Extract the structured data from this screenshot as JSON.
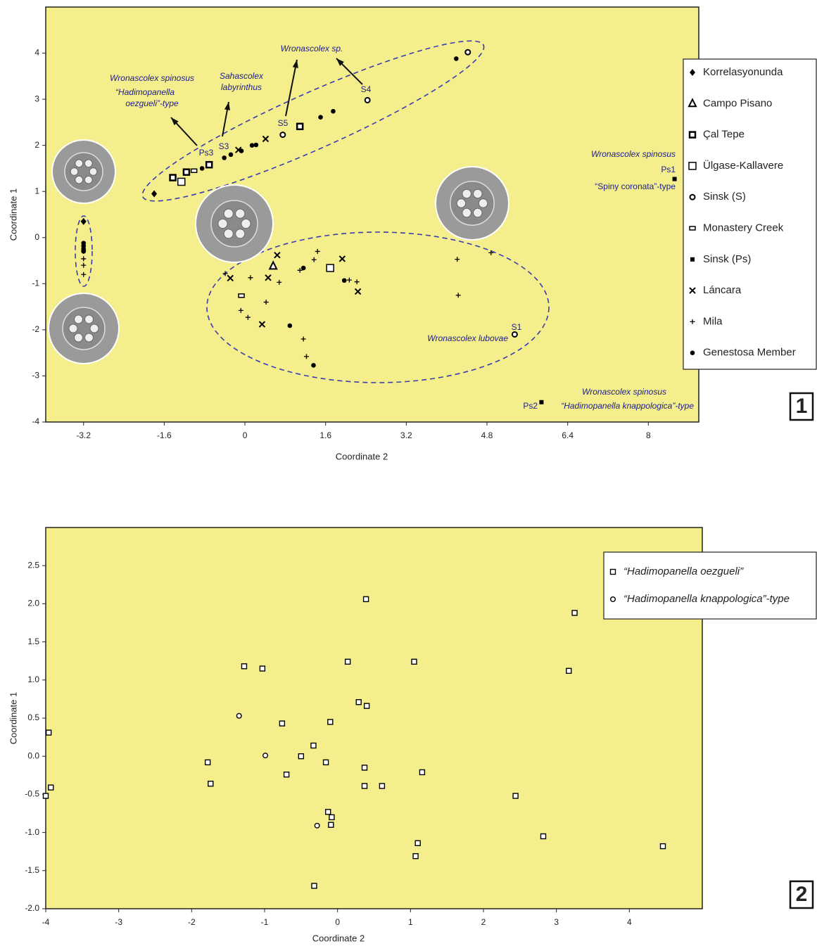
{
  "chart_data": [
    {
      "type": "scatter",
      "xlabel": "Coordinate 2",
      "ylabel": "Coordinate 1",
      "xlim": [
        -3.95,
        9.0
      ],
      "ylim": [
        -4,
        5
      ],
      "xticks": [
        -3.2,
        -1.6,
        0,
        1.6,
        3.2,
        4.8,
        6.4,
        8
      ],
      "yticks": [
        -4,
        -3,
        -2,
        -1,
        0,
        1,
        2,
        3,
        4
      ],
      "legend": "right",
      "panel_label": "1",
      "series": [
        {
          "name": "Korrelasyonunda",
          "marker": "diamond",
          "color": "#000000",
          "x": [
            -1.8,
            -3.2
          ],
          "values": [
            0.95,
            0.35
          ]
        },
        {
          "name": "Campo Pisano",
          "marker": "triangle",
          "color": "#000000",
          "x": [
            0.56
          ],
          "values": [
            -0.62
          ]
        },
        {
          "name": "Çal Tepe",
          "marker": "square-bold",
          "color": "#000000",
          "x": [
            -1.43,
            -1.16,
            -0.71,
            1.09
          ],
          "values": [
            1.3,
            1.42,
            1.58,
            2.41
          ]
        },
        {
          "name": "Ülgase-Kallavere",
          "marker": "square-open",
          "color": "#000000",
          "x": [
            -1.26,
            1.69
          ],
          "values": [
            1.21,
            -0.66
          ]
        },
        {
          "name": "Sinsk (S)",
          "marker": "circle-open",
          "color": "#000000",
          "x": [
            0.75,
            2.43,
            4.42,
            5.35
          ],
          "values": [
            2.23,
            2.98,
            4.02,
            -2.1
          ]
        },
        {
          "name": "Monastery Creek",
          "marker": "rect-small",
          "color": "#000000",
          "x": [
            -1.01,
            -0.07
          ],
          "values": [
            1.45,
            -1.26
          ]
        },
        {
          "name": "Sinsk (Ps)",
          "marker": "square-filled",
          "color": "#000000",
          "x": [
            8.52,
            5.88
          ],
          "values": [
            1.27,
            -3.57
          ]
        },
        {
          "name": "Láncara",
          "marker": "x",
          "color": "#000000",
          "x": [
            -0.13,
            0.41,
            0.64,
            -0.29,
            0.46,
            1.93,
            2.24,
            0.34
          ],
          "values": [
            1.9,
            2.14,
            -0.38,
            -0.88,
            -0.87,
            -0.46,
            -1.17,
            -1.88
          ]
        },
        {
          "name": "Mila",
          "marker": "plus",
          "color": "#000000",
          "x": [
            -3.2,
            -3.2,
            -3.2,
            -3.2,
            -3.2,
            -0.39,
            0.11,
            0.68,
            1.44,
            1.37,
            1.09,
            2.07,
            2.22,
            0.42,
            -0.08,
            0.06,
            1.16,
            1.22,
            4.21,
            4.88,
            4.23
          ],
          "values": [
            0.36,
            -0.28,
            -0.46,
            -0.6,
            -0.8,
            -0.78,
            -0.87,
            -0.97,
            -0.3,
            -0.48,
            -0.71,
            -0.92,
            -0.96,
            -1.4,
            -1.58,
            -1.73,
            -2.2,
            -2.58,
            -0.47,
            -0.33,
            -1.25
          ]
        },
        {
          "name": "Genestosa Member",
          "marker": "dot",
          "color": "#000000",
          "x": [
            -0.85,
            -0.41,
            -0.28,
            -0.07,
            0.14,
            0.22,
            1.5,
            1.75,
            4.19,
            -3.2,
            -3.2,
            -3.2,
            -3.2,
            1.16,
            1.97,
            0.89,
            1.36
          ],
          "values": [
            1.5,
            1.73,
            1.8,
            1.88,
            2.0,
            2.01,
            2.61,
            2.74,
            3.88,
            -0.12,
            -0.18,
            -0.24,
            -0.3,
            -0.66,
            -0.93,
            -1.91,
            -2.77
          ]
        }
      ],
      "annotations": [
        "Wronascolex spinosus",
        "“Hadimopanella",
        "oezgueli”-type",
        "Sahascolex",
        "labyrinthus",
        "Wronascolex sp.",
        "S4",
        "S5",
        "S3",
        "Ps3",
        "Wronascolex spinosus",
        "Ps1",
        "“Spiny coronata”-type",
        "S1",
        "Wronascolex lubovae",
        "Wronascolex spinosus",
        "Ps2",
        "“Hadimopanella knappologica”-type"
      ]
    },
    {
      "type": "scatter",
      "xlabel": "Coordinate 2",
      "ylabel": "Coordinate 1",
      "xlim": [
        -4,
        5
      ],
      "ylim": [
        -2,
        3
      ],
      "xticks": [
        -4,
        -3,
        -2,
        -1,
        0,
        1,
        2,
        3,
        4
      ],
      "yticks": [
        {
          "value": -2,
          "label": "-2.0"
        },
        -1.5,
        {
          "value": -1,
          "label": "-1.0"
        },
        -0.5,
        {
          "value": 0,
          "label": "0.0"
        },
        0.5,
        {
          "value": 1,
          "label": "1.0"
        },
        1.5,
        {
          "value": 2,
          "label": "2.0"
        },
        2.5
      ],
      "legend": "upper right",
      "panel_label": "2",
      "series": [
        {
          "name": "“Hadimopanella oezgueli”",
          "marker": "square-small",
          "color": "#000000",
          "x": [
            -3.96,
            -3.93,
            -4.0,
            -1.78,
            -1.74,
            -1.28,
            -1.03,
            -0.76,
            -0.7,
            -0.5,
            -0.33,
            -0.16,
            -0.1,
            -0.13,
            -0.08,
            -0.09,
            0.14,
            0.29,
            0.37,
            0.37,
            0.39,
            0.4,
            0.61,
            1.05,
            1.16,
            1.07,
            1.1,
            2.44,
            2.82,
            3.17,
            3.25,
            4.46,
            -0.32
          ],
          "values": [
            0.31,
            -0.41,
            -0.52,
            -0.08,
            -0.36,
            1.18,
            1.15,
            0.43,
            -0.24,
            0.0,
            0.14,
            -0.08,
            0.45,
            -0.73,
            -0.8,
            -0.9,
            1.24,
            0.71,
            -0.15,
            -0.39,
            2.06,
            0.66,
            -0.39,
            1.24,
            -0.21,
            -1.31,
            -1.14,
            -0.52,
            -1.05,
            1.12,
            1.88,
            -1.18,
            -1.7
          ]
        },
        {
          "name": "“Hadimopanella knappologica”-type",
          "marker": "circle-small",
          "color": "#000000",
          "x": [
            -1.35,
            -0.99,
            -0.28
          ],
          "values": [
            0.53,
            0.01,
            -0.91
          ]
        }
      ]
    }
  ]
}
